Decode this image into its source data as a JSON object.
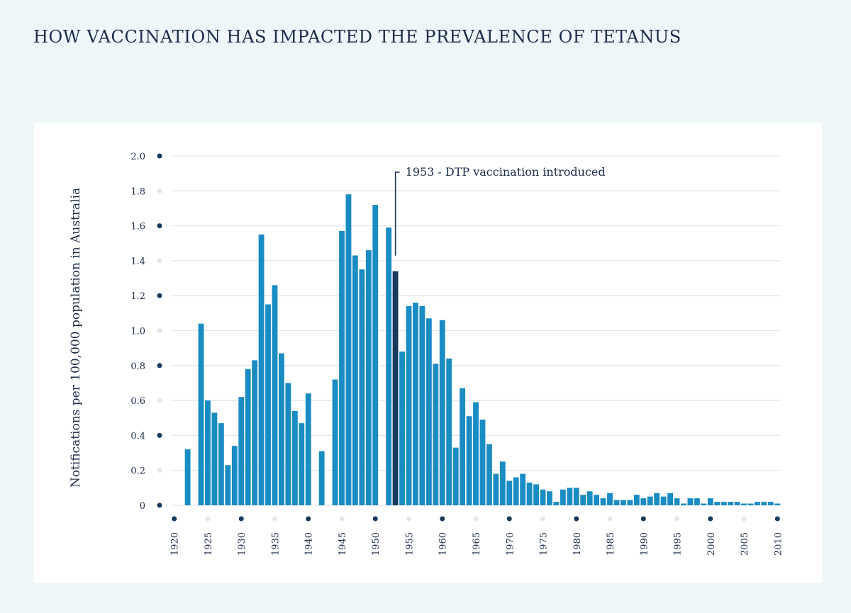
{
  "page": {
    "title": "HOW VACCINATION HAS IMPACTED THE PREVALENCE OF TETANUS"
  },
  "colors": {
    "bar": "#1a8cc4",
    "highlight_bar": "#163a5c",
    "dot_dark": "#163a5c",
    "dot_light": "#e4e7ea",
    "grid": "#e3e7ea",
    "text": "#1b2b4a"
  },
  "chart_data": {
    "type": "bar",
    "title": "",
    "ylabel": "Notifications per 100,000 population in Australia",
    "xlabel": "",
    "ylim": [
      0,
      2.0
    ],
    "yticks": [
      0,
      0.2,
      0.4,
      0.6,
      0.8,
      1.0,
      1.2,
      1.4,
      1.6,
      1.8,
      2.0
    ],
    "ytick_labels": [
      "0",
      "0.2",
      "0.4",
      "0.6",
      "0.8",
      "1.0",
      "1.2",
      "1.4",
      "1.6",
      "1.8",
      "2.0"
    ],
    "xlim": [
      1919.5,
      2010.5
    ],
    "xticks": [
      1920,
      1925,
      1930,
      1935,
      1940,
      1945,
      1950,
      1955,
      1960,
      1965,
      1970,
      1975,
      1980,
      1985,
      1990,
      1995,
      2000,
      2005,
      2010
    ],
    "grid": true,
    "highlight_year": 1953,
    "annotation": {
      "year": 1953,
      "text": "1953 - DTP vaccination introduced"
    },
    "x": [
      1922,
      1924,
      1925,
      1926,
      1927,
      1928,
      1929,
      1930,
      1931,
      1932,
      1933,
      1934,
      1935,
      1936,
      1937,
      1938,
      1939,
      1940,
      1942,
      1944,
      1945,
      1946,
      1947,
      1948,
      1949,
      1950,
      1952,
      1953,
      1954,
      1955,
      1956,
      1957,
      1958,
      1959,
      1960,
      1961,
      1962,
      1963,
      1964,
      1965,
      1966,
      1967,
      1968,
      1969,
      1970,
      1971,
      1972,
      1973,
      1974,
      1975,
      1976,
      1977,
      1978,
      1979,
      1980,
      1981,
      1982,
      1983,
      1984,
      1985,
      1986,
      1987,
      1988,
      1989,
      1990,
      1991,
      1992,
      1993,
      1994,
      1995,
      1996,
      1997,
      1998,
      1999,
      2000,
      2001,
      2002,
      2003,
      2004,
      2005,
      2006,
      2007,
      2008,
      2009,
      2010
    ],
    "values": [
      0.32,
      1.04,
      0.6,
      0.53,
      0.47,
      0.23,
      0.34,
      0.62,
      0.78,
      0.83,
      1.55,
      1.15,
      1.26,
      0.87,
      0.7,
      0.54,
      0.47,
      0.64,
      0.31,
      0.72,
      1.57,
      1.78,
      1.43,
      1.35,
      1.46,
      1.72,
      1.59,
      1.34,
      0.88,
      1.14,
      1.16,
      1.14,
      1.07,
      0.81,
      1.06,
      0.84,
      0.33,
      0.67,
      0.51,
      0.59,
      0.49,
      0.35,
      0.18,
      0.25,
      0.14,
      0.16,
      0.18,
      0.13,
      0.12,
      0.09,
      0.08,
      0.02,
      0.09,
      0.1,
      0.1,
      0.06,
      0.08,
      0.06,
      0.04,
      0.07,
      0.03,
      0.03,
      0.03,
      0.06,
      0.04,
      0.05,
      0.07,
      0.05,
      0.07,
      0.04,
      0.01,
      0.04,
      0.04,
      0.01,
      0.04,
      0.02,
      0.02,
      0.02,
      0.02,
      0.01,
      0.01,
      0.02,
      0.02,
      0.02,
      0.01
    ]
  }
}
